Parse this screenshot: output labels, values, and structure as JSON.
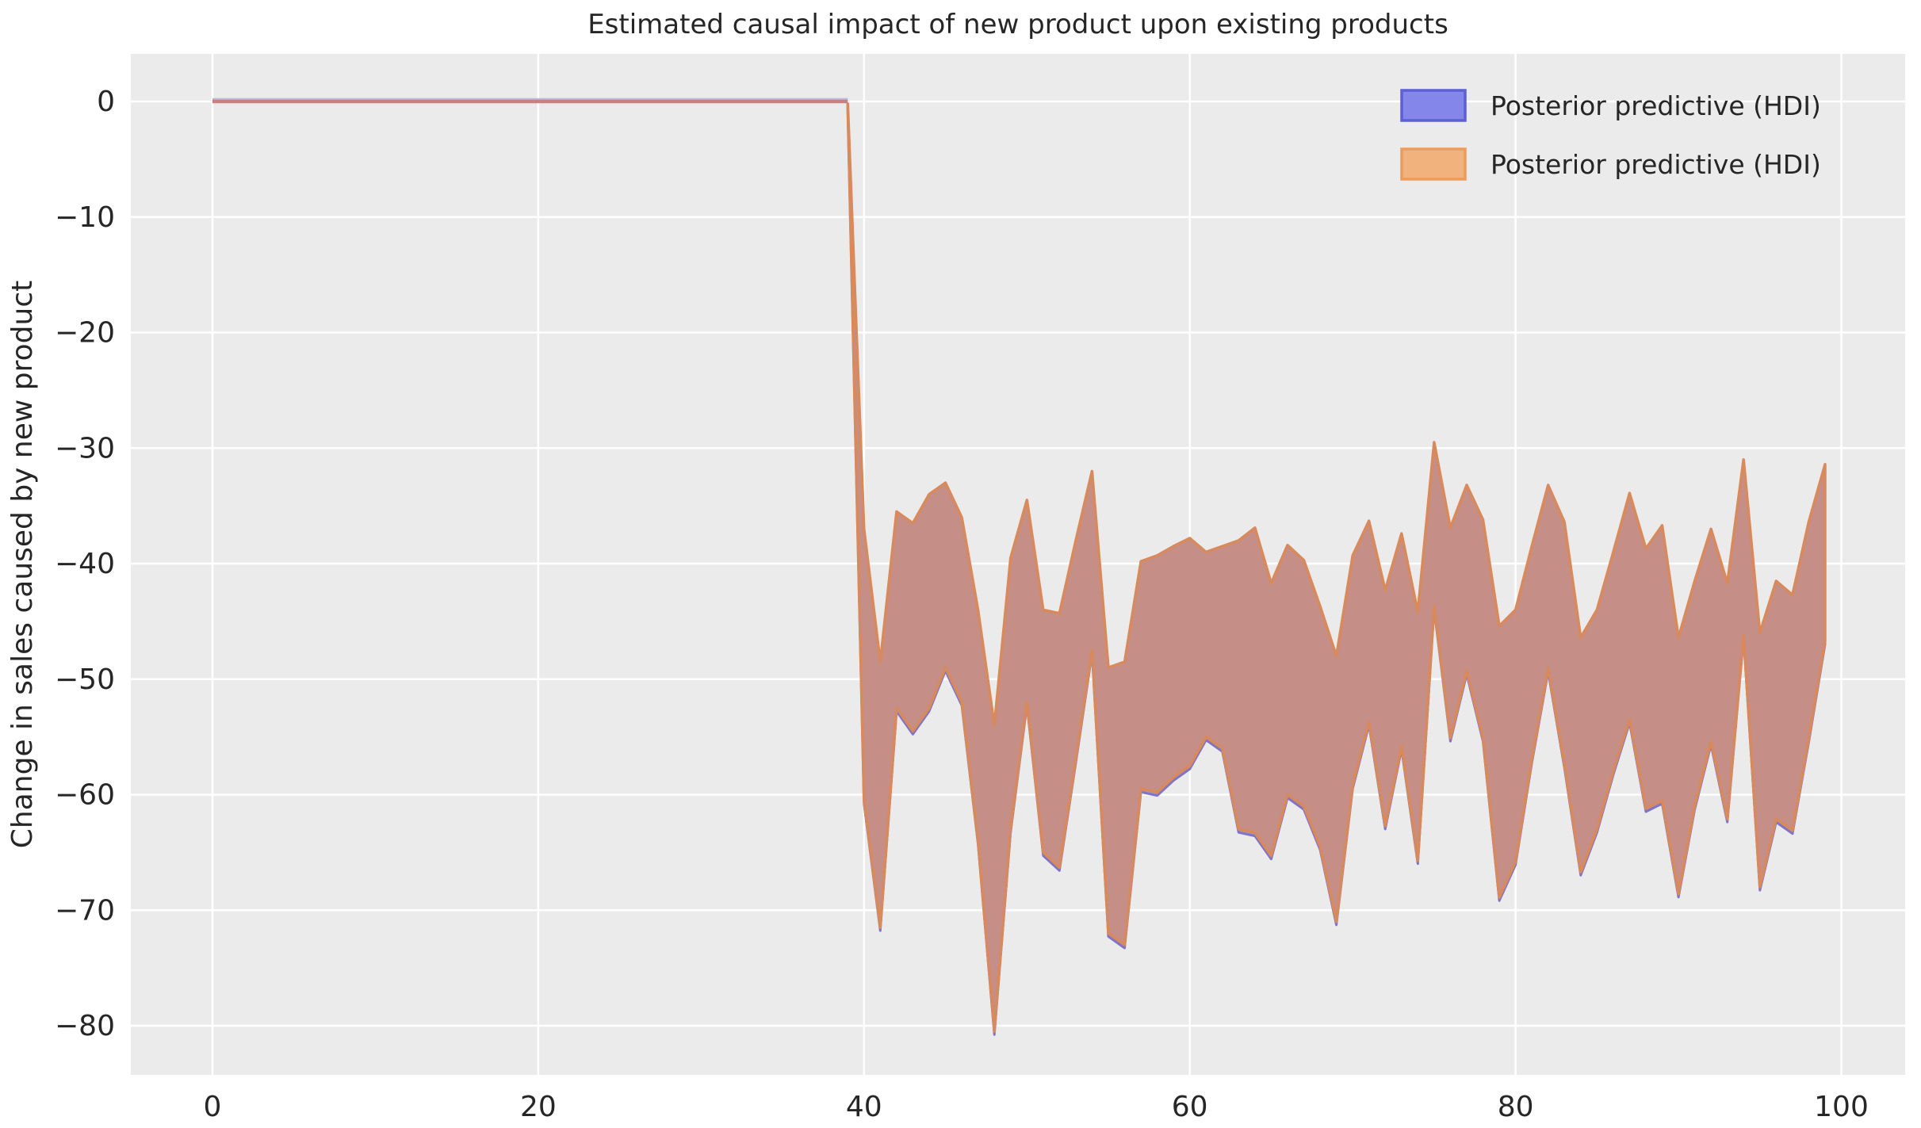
{
  "title": "Estimated causal impact of new product upon existing products",
  "ylabel": "Change in sales caused by new product",
  "legend": {
    "position": "upper right",
    "items": [
      {
        "label": "Posterior predictive (HDI)",
        "fill": "#8487e9",
        "edge": "#5d5fd3"
      },
      {
        "label": "Posterior predictive (HDI)",
        "fill": "#f2b27e",
        "edge": "#eb9c5c"
      }
    ]
  },
  "colors": {
    "figure_bg": "#ffffff",
    "axes_bg": "#ebebeb",
    "grid": "#ffffff",
    "text": "#262626",
    "band_fill_blend": "#c58e86",
    "band_edge_orange": "#d98a5c",
    "band_edge_blue": "#7f74c6",
    "band_fill_blue": "#a096cf",
    "pre_period_line": "#c98083",
    "pre_period_blue_fringe": "#c2b7d7"
  },
  "chart_data": {
    "type": "area",
    "title": "Estimated causal impact of new product upon existing products",
    "xlabel": "",
    "ylabel": "Change in sales caused by new product",
    "xlim": [
      -5,
      104
    ],
    "ylim": [
      -84.3,
      4.1
    ],
    "grid": true,
    "x_ticks": [
      0,
      20,
      40,
      60,
      80,
      100
    ],
    "x_tick_labels": [
      "0",
      "20",
      "40",
      "60",
      "80",
      "100"
    ],
    "y_ticks": [
      0,
      -10,
      -20,
      -30,
      -40,
      -50,
      -60,
      -70,
      -80
    ],
    "y_tick_labels": [
      "0",
      "−10",
      "−20",
      "−30",
      "−40",
      "−50",
      "−60",
      "−70",
      "−80"
    ],
    "note": "Two near-identical HDI bands (blue drawn first, orange on top) overlap, appearing rosy-brown. Counterfactual impact is ~0 before x=39, then drops sharply.",
    "pre_period": {
      "x_start": 0,
      "x_end": 39,
      "value": 0
    },
    "band": {
      "x": [
        39,
        40,
        41,
        42,
        43,
        44,
        45,
        46,
        47,
        48,
        49,
        50,
        51,
        52,
        53,
        54,
        55,
        56,
        57,
        58,
        59,
        60,
        61,
        62,
        63,
        64,
        65,
        66,
        67,
        68,
        69,
        70,
        71,
        72,
        73,
        74,
        75,
        76,
        77,
        78,
        79,
        80,
        81,
        82,
        83,
        84,
        85,
        86,
        87,
        88,
        89,
        90,
        91,
        92,
        93,
        94,
        95,
        96,
        97,
        98,
        99
      ],
      "upper": [
        -0.2,
        -37,
        -48.5,
        -35.5,
        -36.5,
        -34,
        -33,
        -36,
        -44,
        -54,
        -39.5,
        -34.5,
        -44,
        -44.3,
        -38,
        -32,
        -49,
        -48.5,
        -39.8,
        -39.3,
        -38.5,
        -37.8,
        -39,
        -38.5,
        -38,
        -36.9,
        -41.7,
        -38.4,
        -39.7,
        -43.7,
        -48,
        -39.3,
        -36.3,
        -42.3,
        -37.4,
        -44.2,
        -29.5,
        -36.9,
        -33.2,
        -36.2,
        -45.4,
        -44,
        -38.5,
        -33.2,
        -36.4,
        -46.4,
        -44,
        -39,
        -33.9,
        -38.7,
        -36.7,
        -46.4,
        -41.5,
        -37,
        -41.7,
        -31,
        -46,
        -41.5,
        -42.7,
        -36.4,
        -31.4
      ],
      "lower": [
        -0.5,
        -60.5,
        -71.5,
        -52.5,
        -54.5,
        -52.5,
        -49,
        -52,
        -64,
        -80.5,
        -63,
        -52,
        -65,
        -66.3,
        -57,
        -47.5,
        -72,
        -73,
        -59.5,
        -59.8,
        -58.5,
        -57.5,
        -55,
        -56,
        -63,
        -63.3,
        -65.3,
        -60,
        -61,
        -64.5,
        -71,
        -59.2,
        -53.7,
        -62.7,
        -55.8,
        -65.7,
        -43.7,
        -55.1,
        -49.3,
        -55.1,
        -68.9,
        -65.8,
        -57,
        -49.1,
        -57.4,
        -66.7,
        -63,
        -58,
        -53.5,
        -61.2,
        -60.5,
        -68.6,
        -61,
        -55.4,
        -62.1,
        -46.2,
        -68,
        -62.1,
        -63.1,
        -55.2,
        -46.7
      ]
    },
    "series": [
      {
        "name": "Posterior predictive (HDI)",
        "color": "#5d5fd3",
        "role": "hdi-band-blue"
      },
      {
        "name": "Posterior predictive (HDI)",
        "color": "#eb9c5c",
        "role": "hdi-band-orange"
      }
    ]
  }
}
